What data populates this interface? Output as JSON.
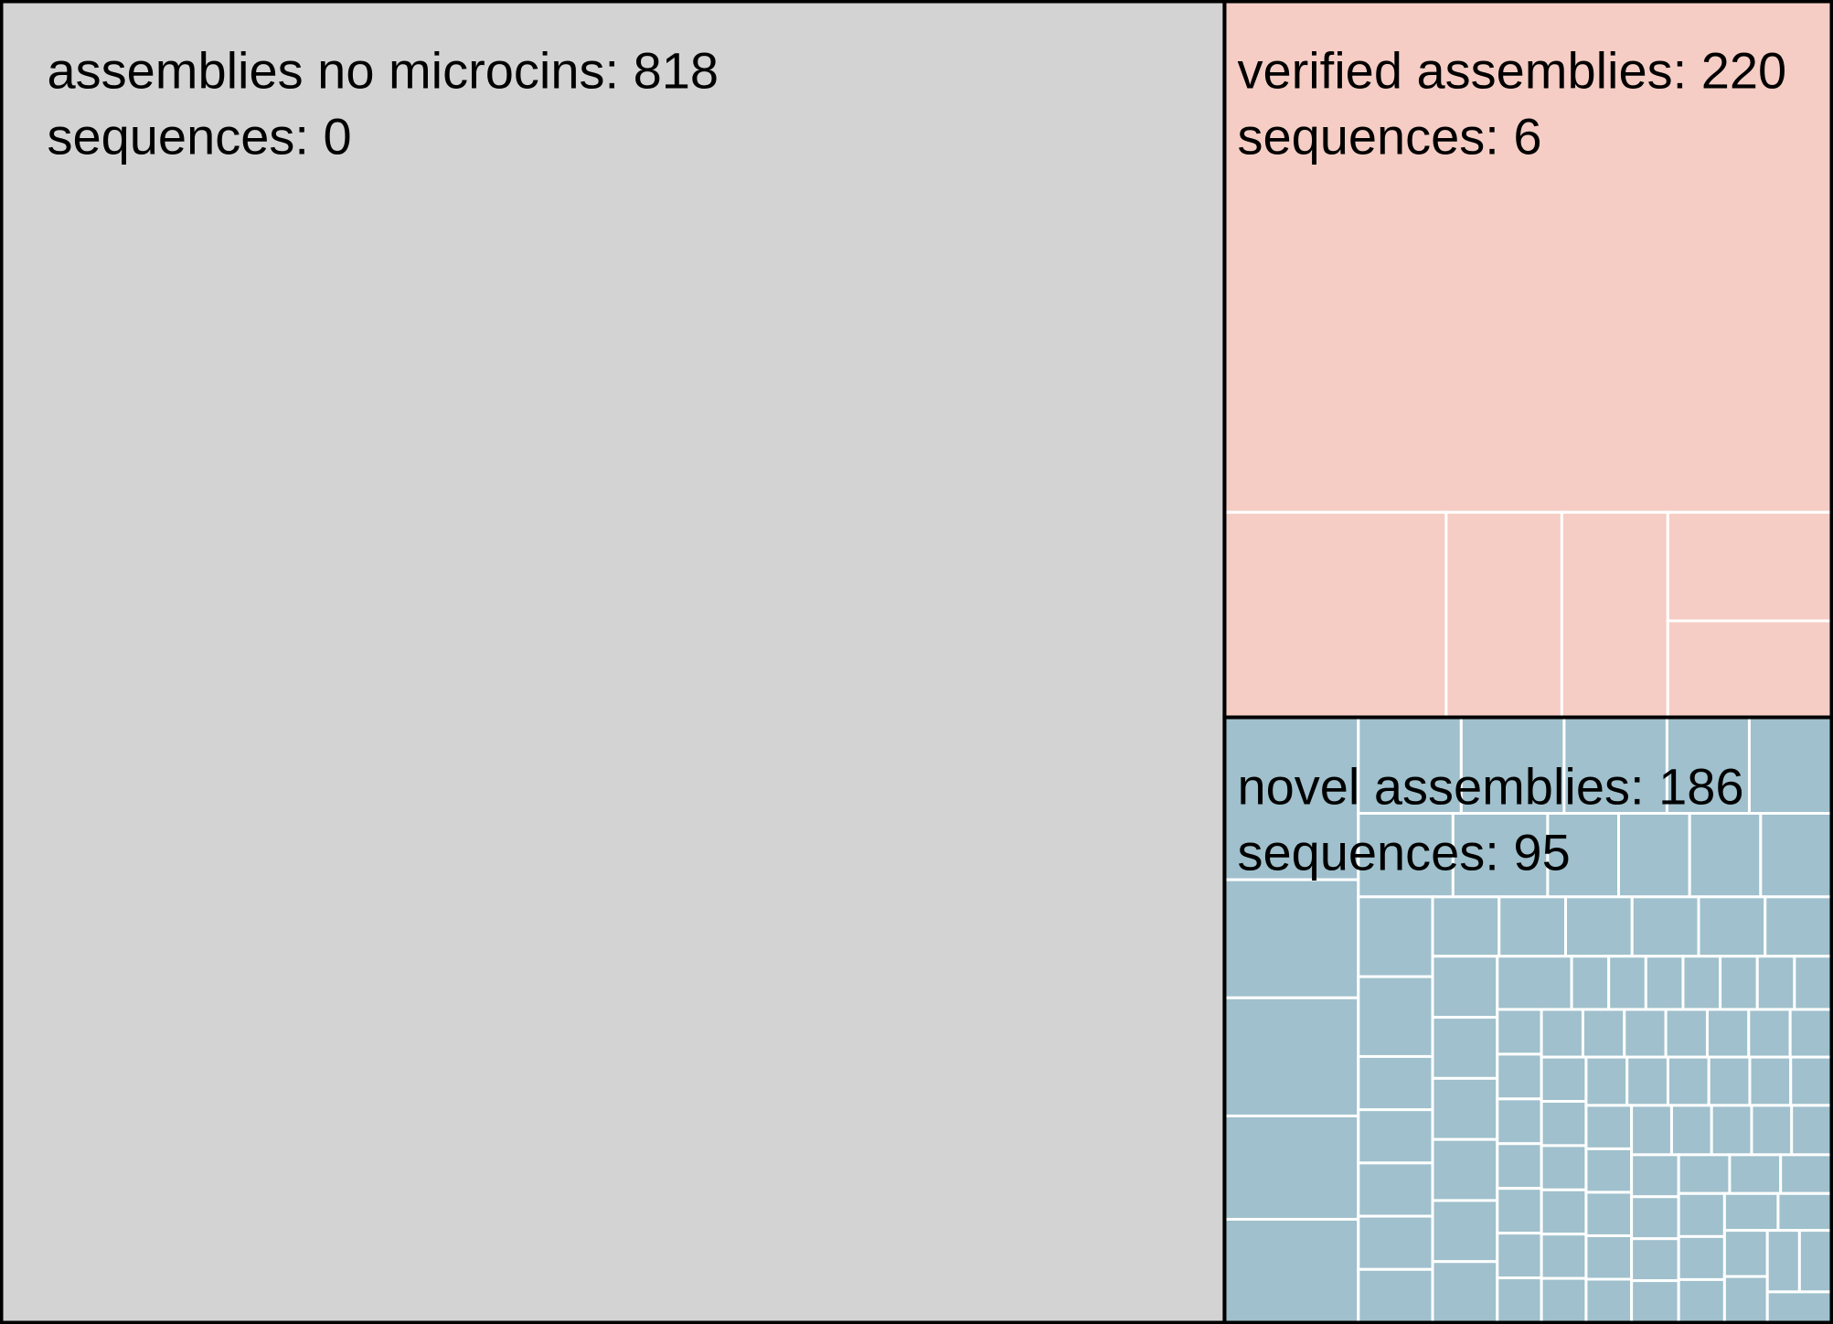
{
  "colors": {
    "none": "#d3d3d3",
    "verified": "#f5cdc4",
    "novel": "#9fc0cc",
    "outer_border": "#000000",
    "inner_border": "#ffffff"
  },
  "chart_data": {
    "type": "treemap",
    "groups": [
      {
        "key": "none",
        "label_line1": "assemblies no microcins: 818",
        "label_line2": "sequences: 0",
        "assemblies": 818,
        "sequences": 0,
        "subgroups": []
      },
      {
        "key": "verified",
        "label_line1": "verified assemblies: 220",
        "label_line2": "sequences: 6",
        "assemblies": 220,
        "sequences": 6,
        "subgroups": [
          157,
          23,
          12,
          11,
          9,
          8
        ]
      },
      {
        "key": "novel",
        "label_line1": "novel assemblies: 186",
        "label_line2": "sequences: 95",
        "assemblies": 186,
        "sequences": 95,
        "subgroups": [
          11,
          8,
          7,
          7,
          5,
          5,
          5,
          4,
          4,
          4,
          4,
          3,
          3,
          3,
          3,
          3,
          3,
          2,
          2,
          2,
          2,
          2,
          2,
          2,
          2,
          2,
          2,
          2,
          2,
          2,
          2,
          2,
          2,
          2,
          2,
          1,
          1,
          1,
          1,
          1,
          1,
          1,
          1,
          1,
          1,
          1,
          1,
          1,
          1,
          1,
          1,
          1,
          1,
          1,
          1,
          1,
          1,
          1,
          1,
          1,
          1,
          1,
          1,
          1,
          1,
          1,
          1,
          1,
          1,
          1,
          1,
          1,
          1,
          1,
          1,
          1,
          1,
          1,
          1,
          1,
          1,
          1,
          1,
          1,
          1,
          1,
          1,
          1,
          1,
          1,
          1,
          1,
          1,
          1,
          1
        ]
      }
    ]
  }
}
